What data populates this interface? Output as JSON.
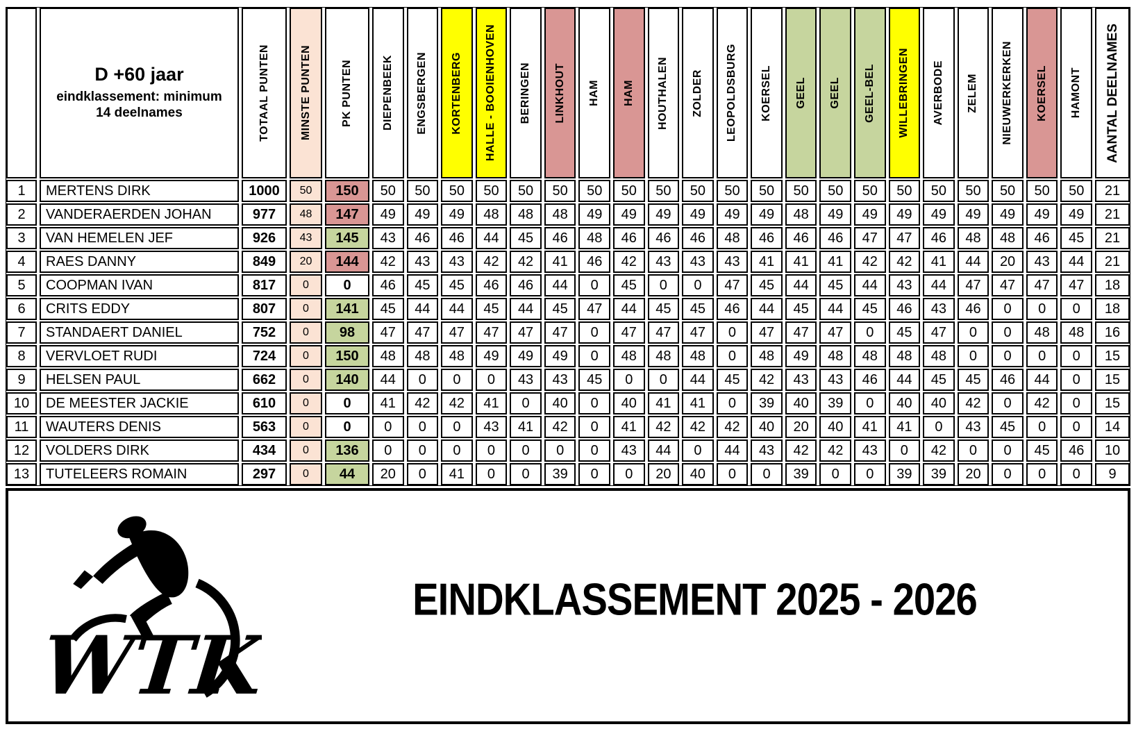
{
  "header": {
    "title": "D +60 jaar",
    "subtitle": "eindklassement: minimum 14 deelnames",
    "fixed_columns": [
      {
        "label": "TOTAAL PUNTEN",
        "bg": "#FFFFFF"
      },
      {
        "label": "MINSTE PUNTEN",
        "bg": "#FBE3D4"
      },
      {
        "label": "PK PUNTEN",
        "bg": "#FFFFFF"
      }
    ],
    "race_columns": [
      {
        "label": "DIEPENBEEK",
        "bg": "#FFFFFF"
      },
      {
        "label": "ENGSBERGEN",
        "bg": "#FFFFFF"
      },
      {
        "label": "KORTENBERG",
        "bg": "#FFFF00"
      },
      {
        "label": "HALLE - BOOIENHOVEN",
        "bg": "#FFFF00"
      },
      {
        "label": "BERINGEN",
        "bg": "#FFFFFF"
      },
      {
        "label": "LINKHOUT",
        "bg": "#D99694"
      },
      {
        "label": "HAM",
        "bg": "#FFFFFF"
      },
      {
        "label": "HAM",
        "bg": "#D99694"
      },
      {
        "label": "HOUTHALEN",
        "bg": "#FFFFFF"
      },
      {
        "label": "ZOLDER",
        "bg": "#FFFFFF"
      },
      {
        "label": "LEOPOLDSBURG",
        "bg": "#FFFFFF"
      },
      {
        "label": "KOERSEL",
        "bg": "#FFFFFF"
      },
      {
        "label": "GEEL",
        "bg": "#C6D59E"
      },
      {
        "label": "GEEL",
        "bg": "#C6D59E"
      },
      {
        "label": "GEEL-BEL",
        "bg": "#C6D59E"
      },
      {
        "label": "WILLEBRINGEN",
        "bg": "#FFFF00"
      },
      {
        "label": "AVERBODE",
        "bg": "#FFFFFF"
      },
      {
        "label": "ZELEM",
        "bg": "#FFFFFF"
      },
      {
        "label": "NIEUWERKERKEN",
        "bg": "#FFFFFF"
      },
      {
        "label": "KOERSEL",
        "bg": "#D99694"
      },
      {
        "label": "HAMONT",
        "bg": "#FFFFFF"
      }
    ],
    "last_column": "AANTAL DEELNAMES"
  },
  "colors": {
    "yellow": "#FFFF00",
    "rose": "#D99694",
    "green": "#C6D59E",
    "peach": "#FBE3D4",
    "border": "#000000"
  },
  "rows": [
    {
      "rank": 1,
      "name": "MERTENS DIRK",
      "totaal": 1000,
      "minste": 50,
      "pk": 150,
      "pk_bg": "#D99694",
      "scores": [
        50,
        50,
        50,
        50,
        50,
        50,
        50,
        50,
        50,
        50,
        50,
        50,
        50,
        50,
        50,
        50,
        50,
        50,
        50,
        50,
        50
      ],
      "deelnames": 21
    },
    {
      "rank": 2,
      "name": "VANDERAERDEN JOHAN",
      "totaal": 977,
      "minste": 48,
      "pk": 147,
      "pk_bg": "#D99694",
      "scores": [
        49,
        49,
        49,
        48,
        48,
        48,
        49,
        49,
        49,
        49,
        49,
        49,
        48,
        49,
        49,
        49,
        49,
        49,
        49,
        49,
        49
      ],
      "deelnames": 21
    },
    {
      "rank": 3,
      "name": "VAN HEMELEN JEF",
      "totaal": 926,
      "minste": 43,
      "pk": 145,
      "pk_bg": "#C6D59E",
      "scores": [
        43,
        46,
        46,
        44,
        45,
        46,
        48,
        46,
        46,
        46,
        48,
        46,
        46,
        46,
        47,
        47,
        46,
        48,
        48,
        46,
        45
      ],
      "deelnames": 21
    },
    {
      "rank": 4,
      "name": "RAES DANNY",
      "totaal": 849,
      "minste": 20,
      "pk": 144,
      "pk_bg": "#D99694",
      "scores": [
        42,
        43,
        43,
        42,
        42,
        41,
        46,
        42,
        43,
        43,
        43,
        41,
        41,
        41,
        42,
        42,
        41,
        44,
        20,
        43,
        44
      ],
      "deelnames": 21
    },
    {
      "rank": 5,
      "name": "COOPMAN IVAN",
      "totaal": 817,
      "minste": 0,
      "pk": 0,
      "pk_bg": "#FFFFFF",
      "scores": [
        46,
        45,
        45,
        46,
        46,
        44,
        0,
        45,
        0,
        0,
        47,
        45,
        44,
        45,
        44,
        43,
        44,
        47,
        47,
        47,
        47
      ],
      "deelnames": 18
    },
    {
      "rank": 6,
      "name": "CRITS EDDY",
      "totaal": 807,
      "minste": 0,
      "pk": 141,
      "pk_bg": "#C6D59E",
      "scores": [
        45,
        44,
        44,
        45,
        44,
        45,
        47,
        44,
        45,
        45,
        46,
        44,
        45,
        44,
        45,
        46,
        43,
        46,
        0,
        0,
        0
      ],
      "deelnames": 18
    },
    {
      "rank": 7,
      "name": "STANDAERT DANIEL",
      "totaal": 752,
      "minste": 0,
      "pk": 98,
      "pk_bg": "#C6D59E",
      "scores": [
        47,
        47,
        47,
        47,
        47,
        47,
        0,
        47,
        47,
        47,
        0,
        47,
        47,
        47,
        0,
        45,
        47,
        0,
        0,
        48,
        48
      ],
      "deelnames": 16
    },
    {
      "rank": 8,
      "name": "VERVLOET RUDI",
      "totaal": 724,
      "minste": 0,
      "pk": 150,
      "pk_bg": "#C6D59E",
      "scores": [
        48,
        48,
        48,
        49,
        49,
        49,
        0,
        48,
        48,
        48,
        0,
        48,
        49,
        48,
        48,
        48,
        48,
        0,
        0,
        0,
        0
      ],
      "deelnames": 15
    },
    {
      "rank": 9,
      "name": "HELSEN PAUL",
      "totaal": 662,
      "minste": 0,
      "pk": 140,
      "pk_bg": "#C6D59E",
      "scores": [
        44,
        0,
        0,
        0,
        43,
        43,
        45,
        0,
        0,
        44,
        45,
        42,
        43,
        43,
        46,
        44,
        45,
        45,
        46,
        44,
        0
      ],
      "deelnames": 15
    },
    {
      "rank": 10,
      "name": "DE MEESTER JACKIE",
      "totaal": 610,
      "minste": 0,
      "pk": 0,
      "pk_bg": "#FFFFFF",
      "scores": [
        41,
        42,
        42,
        41,
        0,
        40,
        0,
        40,
        41,
        41,
        0,
        39,
        40,
        39,
        0,
        40,
        40,
        42,
        0,
        42,
        0
      ],
      "deelnames": 15
    },
    {
      "rank": 11,
      "name": "WAUTERS DENIS",
      "totaal": 563,
      "minste": 0,
      "pk": 0,
      "pk_bg": "#FFFFFF",
      "scores": [
        0,
        0,
        0,
        43,
        41,
        42,
        0,
        41,
        42,
        42,
        42,
        40,
        20,
        40,
        41,
        41,
        0,
        43,
        45,
        0,
        0
      ],
      "deelnames": 14
    },
    {
      "rank": 12,
      "name": "VOLDERS DIRK",
      "totaal": 434,
      "minste": 0,
      "pk": 136,
      "pk_bg": "#C6D59E",
      "scores": [
        0,
        0,
        0,
        0,
        0,
        0,
        0,
        43,
        44,
        0,
        44,
        43,
        42,
        42,
        43,
        0,
        42,
        0,
        0,
        45,
        46
      ],
      "deelnames": 10
    },
    {
      "rank": 13,
      "name": "TUTELEERS ROMAIN",
      "totaal": 297,
      "minste": 0,
      "pk": 44,
      "pk_bg": "#C6D59E",
      "scores": [
        20,
        0,
        41,
        0,
        0,
        39,
        0,
        0,
        20,
        40,
        0,
        0,
        39,
        0,
        0,
        39,
        39,
        20,
        0,
        0,
        0
      ],
      "deelnames": 9
    }
  ],
  "footer": {
    "logo_text": "WTK",
    "title": "EINDKLASSEMENT 2025 - 2026"
  }
}
